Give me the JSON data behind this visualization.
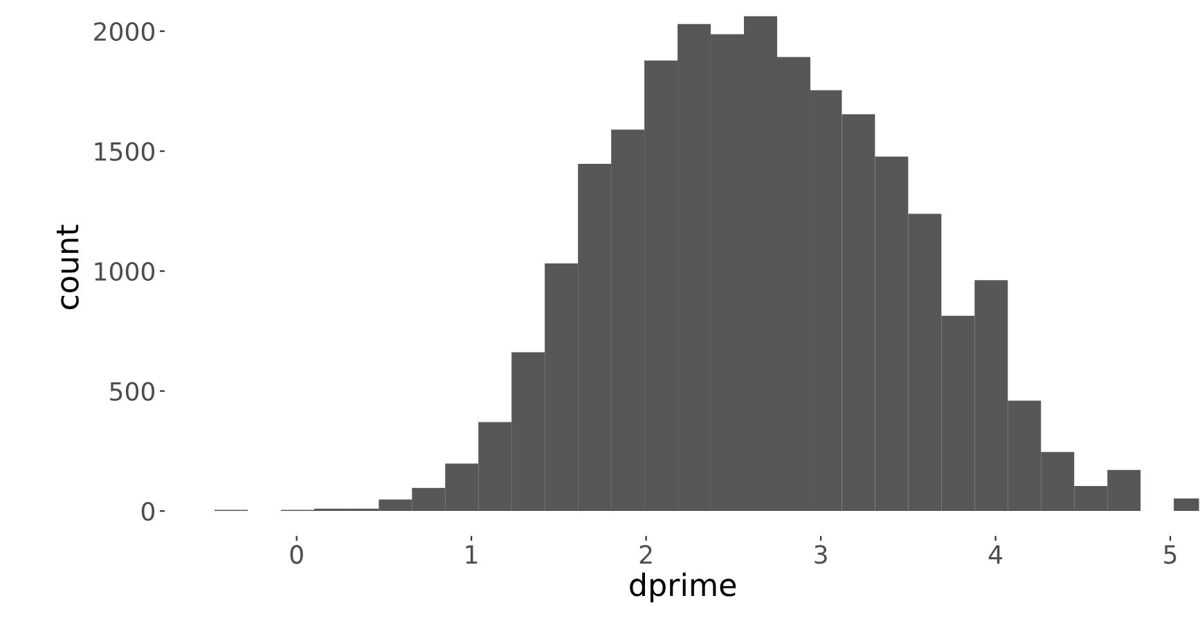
{
  "chart_data": {
    "type": "histogram",
    "xlabel": "dprime",
    "ylabel": "count",
    "color": "#575757",
    "bins": [
      -0.47,
      -0.28,
      -0.09,
      0.1,
      0.29,
      0.47,
      0.66,
      0.85,
      1.04,
      1.23,
      1.42,
      1.61,
      1.8,
      1.99,
      2.18,
      2.37,
      2.56,
      2.75,
      2.94,
      3.12,
      3.31,
      3.5,
      3.69,
      3.88,
      4.07,
      4.26,
      4.45,
      4.64,
      4.83,
      5.02,
      5.21
    ],
    "values": [
      5,
      0,
      5,
      10,
      10,
      48,
      96,
      198,
      371,
      662,
      1032,
      1447,
      1590,
      1878,
      2030,
      1987,
      2062,
      1892,
      1754,
      1654,
      1477,
      1239,
      814,
      962,
      460,
      246,
      104,
      171,
      0,
      52
    ],
    "xlim": [
      -0.75,
      5.17
    ],
    "ylim": [
      -100,
      2130
    ],
    "xticks": [
      0,
      1,
      2,
      3,
      4,
      5
    ],
    "yticks": [
      0,
      500,
      1000,
      1500,
      2000
    ],
    "grid": false
  }
}
